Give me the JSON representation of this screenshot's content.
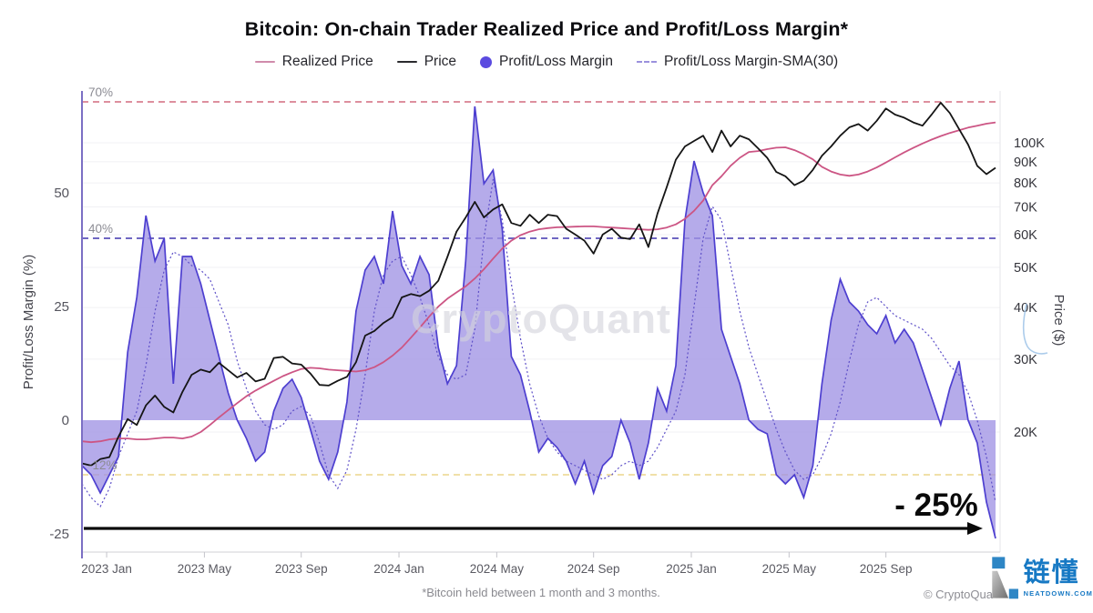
{
  "title": "Bitcoin: On-chain Trader Realized Price and Profit/Loss Margin*",
  "watermark": "CryptoQuant",
  "footnote": "*Bitcoin held between 1 month and 3 months.",
  "copyright": "© CryptoQua",
  "brand": {
    "name": "链懂",
    "site": "NEATDOWN.COM",
    "color": "#1779c4"
  },
  "annotation": {
    "text": "- 25%",
    "value": -25
  },
  "legend": [
    {
      "label": "Realized Price",
      "swatch": "line",
      "color": "#d08bab"
    },
    {
      "label": "Price",
      "swatch": "line-black",
      "color": "#2a2a2e"
    },
    {
      "label": "Profit/Loss Margin",
      "swatch": "circle",
      "color": "#5b4be0"
    },
    {
      "label": "Profit/Loss Margin-SMA(30)",
      "swatch": "dash",
      "color": "#9b91dd"
    }
  ],
  "axes": {
    "left": {
      "title": "Profit/Loss Margin (%)",
      "ticks": [
        {
          "v": 50,
          "label": "50"
        },
        {
          "v": 25,
          "label": "25"
        },
        {
          "v": 0,
          "label": "0"
        },
        {
          "v": -25,
          "label": "-25"
        }
      ]
    },
    "right": {
      "title": "Price ($)",
      "log": true,
      "ticks": [
        {
          "v": 100,
          "label": "100K"
        },
        {
          "v": 90,
          "label": "90K"
        },
        {
          "v": 80,
          "label": "80K"
        },
        {
          "v": 70,
          "label": "70K"
        },
        {
          "v": 60,
          "label": "60K"
        },
        {
          "v": 50,
          "label": "50K"
        },
        {
          "v": 40,
          "label": "40K"
        },
        {
          "v": 30,
          "label": "30K"
        },
        {
          "v": 20,
          "label": "20K"
        }
      ]
    },
    "x": {
      "ticks": [
        {
          "t": 0.027,
          "label": "2023 Jan"
        },
        {
          "t": 0.134,
          "label": "2023 May"
        },
        {
          "t": 0.24,
          "label": "2023 Sep"
        },
        {
          "t": 0.347,
          "label": "2024 Jan"
        },
        {
          "t": 0.454,
          "label": "2024 May"
        },
        {
          "t": 0.56,
          "label": "2024 Sep"
        },
        {
          "t": 0.667,
          "label": "2025 Jan"
        },
        {
          "t": 0.774,
          "label": "2025 May"
        },
        {
          "t": 0.88,
          "label": "2025 Sep"
        }
      ]
    }
  },
  "ref_lines": [
    {
      "value": 70,
      "label": "70%",
      "color": "#dd8f9e"
    },
    {
      "value": 40,
      "label": "40%",
      "color": "#6f66c2"
    },
    {
      "value": -12,
      "label": "-12%",
      "color": "#f0e0a8"
    }
  ],
  "chart_data": {
    "type": "line",
    "title": "Bitcoin: On-chain Trader Realized Price and Profit/Loss Margin*",
    "x_note": "values sampled uniformly across the plotted period (left edge ≈ Dec 2022 → right edge ≈ end of plot); x tick labels 2023 Jan … 2025 Sep",
    "left_axis": {
      "label": "Profit/Loss Margin (%)",
      "range": [
        -29,
        72.4
      ]
    },
    "right_axis": {
      "label": "Price ($)",
      "scale": "log",
      "ticks_K": [
        100,
        90,
        80,
        70,
        60,
        50,
        40,
        30,
        20
      ]
    },
    "series": [
      {
        "name": "Profit/Loss Margin",
        "axis": "left",
        "unit": "%",
        "style": "area",
        "stroke": "#4d3fd0",
        "fill": "#a094e4",
        "values": [
          -10,
          -12,
          -16,
          -12,
          -8,
          15,
          27,
          45,
          35,
          40,
          8,
          36,
          36,
          30,
          22,
          14,
          6,
          0,
          -4,
          -9,
          -7,
          2,
          7,
          9,
          5,
          -2,
          -9,
          -13,
          -7,
          4,
          24,
          33,
          36,
          30,
          46,
          34,
          30,
          36,
          32,
          16,
          8,
          12,
          35,
          69,
          52,
          55,
          42,
          14,
          10,
          2,
          -7,
          -4,
          -6,
          -9,
          -14,
          -9,
          -16,
          -10,
          -8,
          0,
          -5,
          -13,
          -5,
          7,
          2,
          12,
          44,
          57,
          50,
          45,
          20,
          14,
          8,
          0,
          -2,
          -3,
          -12,
          -14,
          -12,
          -17,
          -10,
          8,
          22,
          31,
          26,
          24,
          21,
          19,
          23,
          17,
          20,
          17,
          11,
          5,
          -1,
          7,
          13,
          0,
          -5,
          -18,
          -26
        ]
      },
      {
        "name": "Profit/Loss Margin-SMA(30)",
        "axis": "left",
        "unit": "%",
        "style": "dotted",
        "stroke": "#5e50c8",
        "values": [
          -14,
          -17,
          -19,
          -15,
          -8,
          -3,
          2,
          12,
          24,
          33,
          37,
          36,
          34,
          33,
          31,
          26,
          21,
          13,
          7,
          2,
          -1,
          -2,
          -1,
          2,
          3,
          1,
          -5,
          -12,
          -15,
          -11,
          -2,
          10,
          24,
          32,
          35,
          36,
          32,
          27,
          21,
          14,
          10,
          9,
          10,
          20,
          40,
          53,
          44,
          30,
          18,
          8,
          1,
          -4,
          -7,
          -9,
          -10,
          -11,
          -12,
          -13,
          -12,
          -10,
          -9,
          -10,
          -9,
          -6,
          -2,
          2,
          10,
          25,
          40,
          47,
          44,
          34,
          24,
          16,
          10,
          4,
          -2,
          -7,
          -11,
          -13,
          -12,
          -8,
          -3,
          4,
          13,
          21,
          26,
          27,
          25,
          23,
          22,
          21,
          20,
          18,
          15,
          12,
          10,
          6,
          0,
          -8,
          -18
        ]
      },
      {
        "name": "Realized Price",
        "axis": "right",
        "unit": "K USD",
        "style": "line",
        "stroke": "#cc5584",
        "values": [
          19.0,
          18.9,
          19.0,
          19.2,
          19.3,
          19.3,
          19.2,
          19.2,
          19.3,
          19.4,
          19.4,
          19.3,
          19.5,
          20.0,
          20.8,
          21.7,
          22.6,
          23.5,
          24.4,
          25.2,
          25.9,
          26.6,
          27.3,
          27.9,
          28.4,
          28.6,
          28.5,
          28.3,
          28.2,
          28.1,
          28.0,
          28.2,
          28.7,
          29.5,
          30.6,
          32.0,
          33.8,
          35.8,
          38.0,
          40.2,
          42.0,
          43.5,
          45.0,
          47.0,
          49.5,
          52.5,
          55.5,
          58.0,
          59.8,
          61.0,
          61.8,
          62.2,
          62.5,
          62.6,
          62.7,
          62.8,
          62.8,
          62.6,
          62.4,
          62.2,
          62.0,
          61.8,
          61.6,
          61.8,
          62.4,
          63.5,
          65.5,
          68.5,
          72.5,
          79.0,
          83.0,
          88.0,
          92.0,
          95.0,
          95.5,
          96.5,
          97.3,
          97.5,
          96.0,
          93.8,
          91.2,
          87.5,
          85.2,
          83.8,
          83.2,
          83.8,
          85.2,
          87.2,
          89.6,
          92.2,
          94.8,
          97.2,
          99.6,
          101.8,
          103.8,
          105.6,
          107.2,
          108.8,
          110.0,
          111.2,
          112.0
        ]
      },
      {
        "name": "Price",
        "axis": "right",
        "unit": "K USD",
        "style": "line",
        "stroke": "#151515",
        "values": [
          16.8,
          16.6,
          17.2,
          17.4,
          19.5,
          21.5,
          20.8,
          23.2,
          24.5,
          23.0,
          22.3,
          25.0,
          27.5,
          28.3,
          27.9,
          29.4,
          28.2,
          27.1,
          27.8,
          26.5,
          26.9,
          30.2,
          30.4,
          29.3,
          29.1,
          27.7,
          26.0,
          25.9,
          26.6,
          27.2,
          29.5,
          34.2,
          35.1,
          36.7,
          37.9,
          42.3,
          43.1,
          42.6,
          43.9,
          46.4,
          53.0,
          61.0,
          66.0,
          72.0,
          66.0,
          69.0,
          71.0,
          64.0,
          63.0,
          67.0,
          64.0,
          67.0,
          66.5,
          62.0,
          60.0,
          58.0,
          54.0,
          60.0,
          62.0,
          59.0,
          58.5,
          63.5,
          56.0,
          67.5,
          78.0,
          91.0,
          98.0,
          101.0,
          104.0,
          95.0,
          107.0,
          98.0,
          104.0,
          102.0,
          97.0,
          92.0,
          85.0,
          83.0,
          79.0,
          81.0,
          86.0,
          93.0,
          98.0,
          104.0,
          109.0,
          111.0,
          107.0,
          113.0,
          121.0,
          117.0,
          115.0,
          112.0,
          110.0,
          117.0,
          125.0,
          118.0,
          108.0,
          99.0,
          88.0,
          84.0,
          87.0
        ]
      }
    ]
  }
}
